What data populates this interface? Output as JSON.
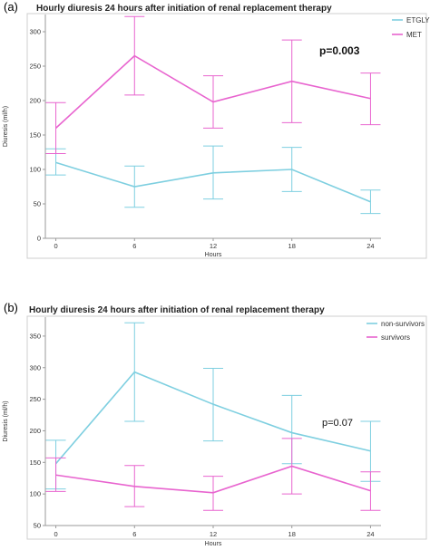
{
  "chart_data": [
    {
      "panel": "(a)",
      "type": "line",
      "title": "Hourly diuresis 24 hours after initiation of renal replacement therapy",
      "xlabel": "Hours",
      "ylabel": "Diuresis (ml/h)",
      "x": [
        0,
        6,
        12,
        18,
        24
      ],
      "xlim": [
        -0.8,
        24.8
      ],
      "ylim": [
        0,
        325
      ],
      "yticks": [
        0,
        50,
        100,
        150,
        200,
        250,
        300
      ],
      "annotation": "p=0.003",
      "legend_position": "right",
      "series": [
        {
          "name": "ETGLY",
          "color": "#7ecfe0",
          "values": [
            110,
            75,
            95,
            100,
            53
          ],
          "lower": [
            92,
            45,
            57,
            68,
            36
          ],
          "upper": [
            130,
            105,
            134,
            132,
            70
          ]
        },
        {
          "name": "MET",
          "color": "#e864cf",
          "values": [
            160,
            265,
            198,
            228,
            203
          ],
          "lower": [
            123,
            208,
            160,
            168,
            165
          ],
          "upper": [
            197,
            322,
            236,
            288,
            240
          ]
        }
      ]
    },
    {
      "panel": "(b)",
      "type": "line",
      "title": "Hourly diuresis 24 hours after initiation of renal replacement therapy",
      "xlabel": "Hours",
      "ylabel": "Diuresis (ml/h)",
      "x": [
        0,
        6,
        12,
        18,
        24
      ],
      "xlim": [
        -0.8,
        24.8
      ],
      "ylim": [
        50,
        380
      ],
      "yticks": [
        50,
        100,
        150,
        200,
        250,
        300,
        350
      ],
      "annotation": "p=0.07",
      "legend_position": "right",
      "series": [
        {
          "name": "non-survivors",
          "color": "#7ecfe0",
          "values": [
            148,
            293,
            242,
            197,
            168
          ],
          "lower": [
            108,
            215,
            184,
            148,
            120
          ],
          "upper": [
            185,
            371,
            299,
            256,
            215
          ]
        },
        {
          "name": "survivors",
          "color": "#e864cf",
          "values": [
            130,
            112,
            102,
            144,
            105
          ],
          "lower": [
            104,
            80,
            74,
            100,
            74
          ],
          "upper": [
            157,
            145,
            128,
            188,
            135
          ]
        }
      ]
    }
  ]
}
